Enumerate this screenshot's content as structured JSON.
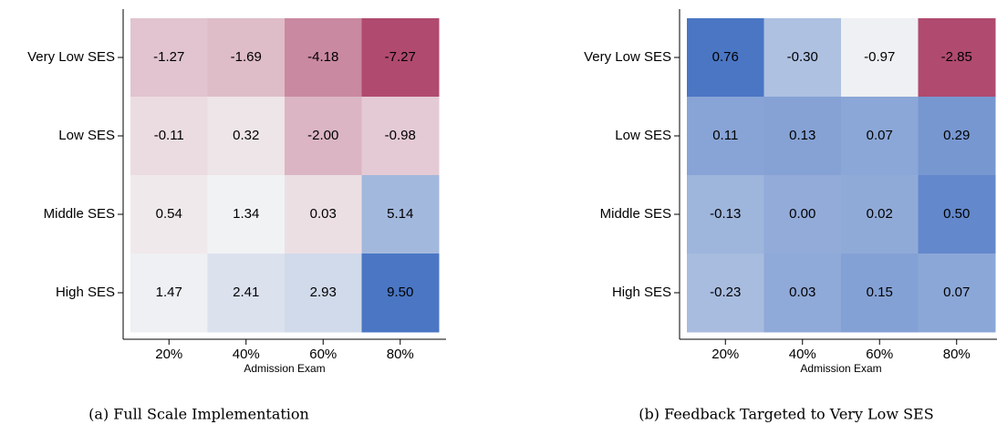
{
  "chart_data": [
    {
      "type": "heatmap",
      "caption": "(a) Full Scale Implementation",
      "xlabel": "Admission Exam",
      "categories": [
        "20%",
        "40%",
        "60%",
        "80%"
      ],
      "y_categories": [
        "Very Low SES",
        "Low SES",
        "Middle SES",
        "High SES"
      ],
      "values": [
        [
          -1.27,
          -1.69,
          -4.18,
          -7.27
        ],
        [
          -0.11,
          0.32,
          -2.0,
          -0.98
        ],
        [
          0.54,
          1.34,
          0.03,
          5.14
        ],
        [
          1.47,
          2.41,
          2.93,
          9.5
        ]
      ],
      "value_labels": [
        [
          "-1.27",
          "-1.69",
          "-4.18",
          "-7.27"
        ],
        [
          "-0.11",
          "0.32",
          "-2.00",
          "-0.98"
        ],
        [
          "0.54",
          "1.34",
          "0.03",
          "5.14"
        ],
        [
          "1.47",
          "2.41",
          "2.93",
          "9.50"
        ]
      ],
      "color_low": "#b04a6f",
      "color_mid": "#f5f5f5",
      "color_high": "#4a76c4"
    },
    {
      "type": "heatmap",
      "caption": "(b) Feedback Targeted to Very Low SES",
      "xlabel": "Admission Exam",
      "categories": [
        "20%",
        "40%",
        "60%",
        "80%"
      ],
      "y_categories": [
        "Very Low SES",
        "Low SES",
        "Middle SES",
        "High SES"
      ],
      "values": [
        [
          0.76,
          -0.3,
          -0.97,
          -2.85
        ],
        [
          0.11,
          0.13,
          0.07,
          0.29
        ],
        [
          -0.13,
          0.0,
          0.02,
          0.5
        ],
        [
          -0.23,
          0.03,
          0.15,
          0.07
        ]
      ],
      "value_labels": [
        [
          "0.76",
          "-0.30",
          "-0.97",
          "-2.85"
        ],
        [
          "0.11",
          "0.13",
          "0.07",
          "0.29"
        ],
        [
          "-0.13",
          "0.00",
          "0.02",
          "0.50"
        ],
        [
          "-0.23",
          "0.03",
          "0.15",
          "0.07"
        ]
      ],
      "color_low": "#b04a6f",
      "color_mid": "#f5f5f5",
      "color_high": "#4a76c4"
    }
  ]
}
